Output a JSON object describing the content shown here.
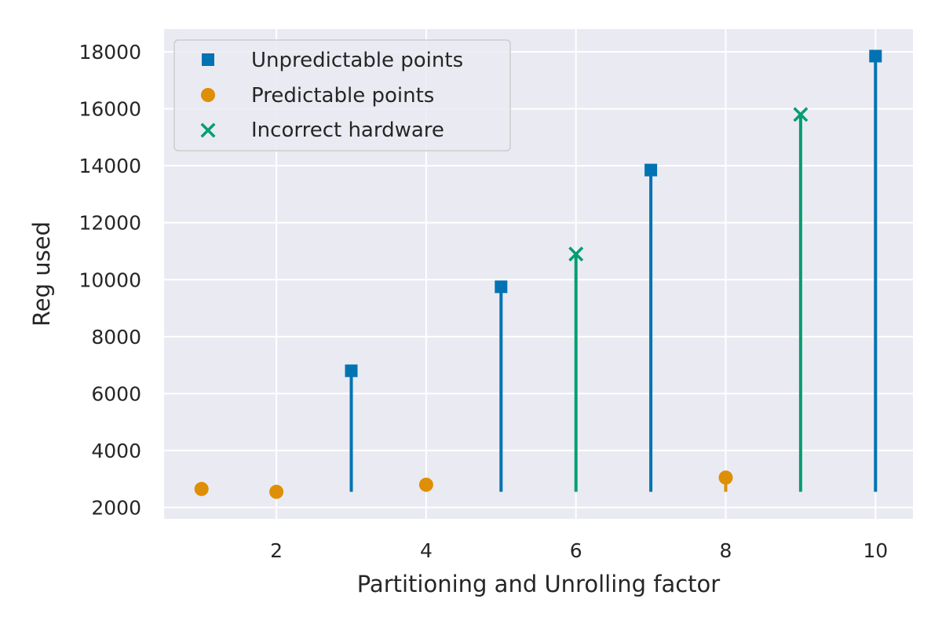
{
  "chart_data": {
    "type": "scatter",
    "xlabel": "Partitioning and Unrolling factor",
    "ylabel": "Reg used",
    "xlim": [
      0.5,
      10.5
    ],
    "ylim": [
      1600,
      18800
    ],
    "xticks": [
      2,
      4,
      6,
      8,
      10
    ],
    "yticks": [
      2000,
      4000,
      6000,
      8000,
      10000,
      12000,
      14000,
      16000,
      18000
    ],
    "grid": true,
    "legend_position": "upper-left",
    "stem_base": 2550,
    "series": [
      {
        "name": "Unpredictable points",
        "marker": "square",
        "color": "#0173b2",
        "points": [
          [
            3,
            6800
          ],
          [
            5,
            9750
          ],
          [
            7,
            13850
          ],
          [
            10,
            17850
          ]
        ]
      },
      {
        "name": "Predictable points",
        "marker": "circle",
        "color": "#de8f05",
        "points": [
          [
            1,
            2650
          ],
          [
            2,
            2550
          ],
          [
            4,
            2800
          ],
          [
            8,
            3050
          ]
        ]
      },
      {
        "name": "Incorrect hardware",
        "marker": "x",
        "color": "#029e73",
        "points": [
          [
            6,
            10900
          ],
          [
            9,
            15800
          ]
        ]
      }
    ]
  }
}
